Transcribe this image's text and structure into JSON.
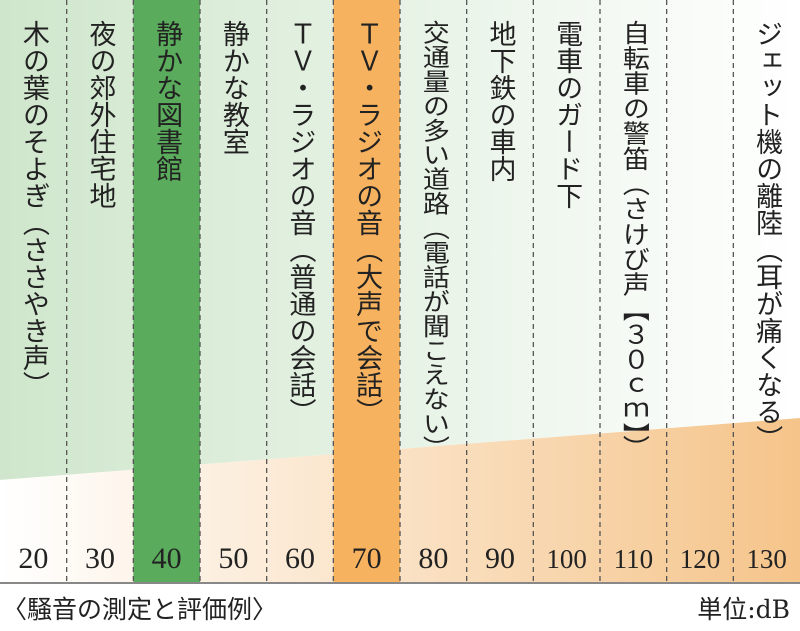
{
  "chart_data": {
    "type": "bar",
    "title": "〈騒音の測定と評価例〉",
    "unit_label": "単位:dB",
    "categories": [
      "20",
      "30",
      "40",
      "50",
      "60",
      "70",
      "80",
      "90",
      "100",
      "110",
      "120",
      "130"
    ],
    "values": [
      20,
      30,
      40,
      50,
      60,
      70,
      80,
      90,
      100,
      110,
      120,
      130
    ],
    "examples": [
      "木の葉のそよぎ（ささやき声）",
      "夜の郊外住宅地",
      "静かな図書館",
      "静かな教室",
      "ＴＶ・ラジオの音（普通の会話）",
      "ＴＶ・ラジオの音（大声で会話）",
      "交通量の多い道路（電話が聞こえない）",
      "地下鉄の車内",
      "電車のガード下",
      "自転車の警笛（さけび声【３０ｃｍ】）",
      "",
      "ジェット機の離陸（耳が痛くなる）"
    ],
    "highlights": [
      {
        "category": "40",
        "color": "#5aab5c"
      },
      {
        "category": "70",
        "color": "#f6b25f"
      }
    ],
    "colors": {
      "quiet_band": "#d4e8d1",
      "loud_band": "#f5c48a",
      "divider": "#555555",
      "baseline": "#888888",
      "text": "#222222"
    }
  }
}
